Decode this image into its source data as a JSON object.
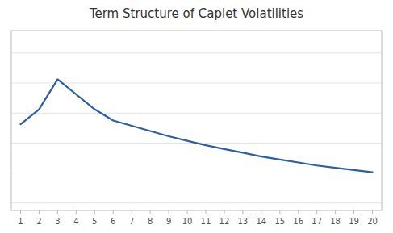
{
  "chart_data": {
    "type": "line",
    "title": "Term Structure of Caplet Volatilities",
    "x": [
      1,
      2,
      3,
      4,
      5,
      6,
      7,
      8,
      9,
      10,
      11,
      12,
      13,
      14,
      15,
      16,
      17,
      18,
      19,
      20
    ],
    "values": [
      0.195,
      0.215,
      0.255,
      0.235,
      0.215,
      0.2,
      0.193,
      0.186,
      0.179,
      0.173,
      0.167,
      0.162,
      0.157,
      0.152,
      0.148,
      0.144,
      0.14,
      0.137,
      0.134,
      0.131
    ],
    "color": "#2e5fa3",
    "xlim": [
      0.5,
      20.5
    ],
    "ylim": [
      0.08,
      0.32
    ],
    "xticks": [
      1,
      2,
      3,
      4,
      5,
      6,
      7,
      8,
      9,
      10,
      11,
      12,
      13,
      14,
      15,
      16,
      17,
      18,
      19,
      20
    ],
    "yticks": [
      0.09,
      0.13,
      0.17,
      0.21,
      0.25,
      0.29
    ],
    "grid": true,
    "tick_labels": "x"
  }
}
